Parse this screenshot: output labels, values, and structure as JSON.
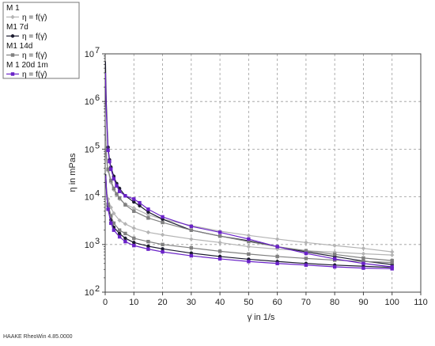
{
  "footer": "HAAKE RheoWin 4.85.0000",
  "colors": {
    "m1": "#b4b4b4",
    "m1_7d": "#1a1a2e",
    "m1_14d": "#808080",
    "m1_20d1m": "#6a22c8",
    "grid": "#9a9a9a"
  },
  "chart_data": {
    "type": "line",
    "xlabel": "γ̇ in 1/s",
    "ylabel": "η in mPas",
    "xlim": [
      0,
      110
    ],
    "ylim": [
      100,
      10000000
    ],
    "yscale": "log",
    "grid": true,
    "legend": "top-left",
    "x_ticks": [
      "0",
      "10",
      "20",
      "30",
      "40",
      "50",
      "60",
      "70",
      "80",
      "90",
      "100",
      "110"
    ],
    "y_ticks": [
      {
        "base": "10",
        "exp": "2",
        "value": 100
      },
      {
        "base": "10",
        "exp": "3",
        "value": 1000
      },
      {
        "base": "10",
        "exp": "4",
        "value": 10000
      },
      {
        "base": "10",
        "exp": "5",
        "value": 100000
      },
      {
        "base": "10",
        "exp": "6",
        "value": 1000000
      },
      {
        "base": "10",
        "exp": "7",
        "value": 10000000
      }
    ],
    "series": [
      {
        "name": "M 1",
        "entry": "η = f(γ̇)",
        "color": "#b4b4b4",
        "marker": "diamond",
        "up": [
          [
            0.1,
            150000
          ],
          [
            0.3,
            80000
          ],
          [
            0.6,
            50000
          ],
          [
            1,
            35000
          ],
          [
            2,
            20000
          ],
          [
            3,
            14000
          ],
          [
            4,
            11000
          ],
          [
            5,
            9000
          ],
          [
            7,
            7000
          ],
          [
            10,
            5800
          ],
          [
            15,
            4200
          ],
          [
            20,
            3400
          ],
          [
            30,
            2500
          ],
          [
            40,
            1900
          ],
          [
            50,
            1550
          ],
          [
            60,
            1300
          ],
          [
            70,
            1100
          ],
          [
            80,
            950
          ],
          [
            90,
            830
          ],
          [
            100,
            700
          ]
        ],
        "down": [
          [
            100,
            600
          ],
          [
            90,
            640
          ],
          [
            80,
            690
          ],
          [
            70,
            740
          ],
          [
            60,
            800
          ],
          [
            50,
            900
          ],
          [
            40,
            1100
          ],
          [
            30,
            1300
          ],
          [
            20,
            1600
          ],
          [
            15,
            1800
          ],
          [
            10,
            2200
          ],
          [
            7,
            2700
          ],
          [
            5,
            3200
          ],
          [
            3,
            4500
          ],
          [
            2,
            6000
          ],
          [
            1,
            9000
          ],
          [
            0.5,
            14000
          ],
          [
            0.2,
            25000
          ]
        ]
      },
      {
        "name": "M1 7d",
        "entry": "η = f(γ̇)",
        "color": "#1a1a2e",
        "marker": "circle",
        "up": [
          [
            0.1,
            7000000
          ],
          [
            0.2,
            3000000
          ],
          [
            0.4,
            900000
          ],
          [
            0.7,
            280000
          ],
          [
            1,
            110000
          ],
          [
            1.5,
            60000
          ],
          [
            2,
            42000
          ],
          [
            3,
            27000
          ],
          [
            4,
            19000
          ],
          [
            5,
            15000
          ],
          [
            7,
            10500
          ],
          [
            10,
            7800
          ],
          [
            12,
            6500
          ],
          [
            15,
            4800
          ],
          [
            20,
            3400
          ],
          [
            30,
            2000
          ],
          [
            40,
            1500
          ],
          [
            50,
            1200
          ],
          [
            60,
            900
          ],
          [
            70,
            700
          ],
          [
            80,
            560
          ],
          [
            90,
            450
          ],
          [
            100,
            380
          ]
        ],
        "down": [
          [
            100,
            330
          ],
          [
            90,
            350
          ],
          [
            80,
            370
          ],
          [
            70,
            400
          ],
          [
            60,
            440
          ],
          [
            50,
            490
          ],
          [
            40,
            560
          ],
          [
            30,
            660
          ],
          [
            20,
            810
          ],
          [
            15,
            920
          ],
          [
            10,
            1100
          ],
          [
            7,
            1350
          ],
          [
            5,
            1700
          ],
          [
            3,
            2300
          ],
          [
            2,
            3300
          ],
          [
            1,
            6500
          ],
          [
            0.5,
            12000
          ],
          [
            0.2,
            30000
          ]
        ]
      },
      {
        "name": "M1 14d",
        "entry": "η = f(γ̇)",
        "color": "#808080",
        "marker": "square",
        "up": [
          [
            0.1,
            300000
          ],
          [
            0.3,
            100000
          ],
          [
            0.6,
            55000
          ],
          [
            1,
            38000
          ],
          [
            2,
            22000
          ],
          [
            3,
            15000
          ],
          [
            4,
            11500
          ],
          [
            5,
            9500
          ],
          [
            7,
            6800
          ],
          [
            10,
            5000
          ],
          [
            15,
            3600
          ],
          [
            20,
            2900
          ],
          [
            30,
            2000
          ],
          [
            40,
            1500
          ],
          [
            50,
            1150
          ],
          [
            60,
            900
          ],
          [
            70,
            740
          ],
          [
            80,
            620
          ],
          [
            90,
            520
          ],
          [
            100,
            460
          ]
        ],
        "down": [
          [
            100,
            420
          ],
          [
            90,
            440
          ],
          [
            80,
            470
          ],
          [
            70,
            510
          ],
          [
            60,
            560
          ],
          [
            50,
            630
          ],
          [
            40,
            720
          ],
          [
            30,
            850
          ],
          [
            20,
            1000
          ],
          [
            15,
            1150
          ],
          [
            10,
            1350
          ],
          [
            7,
            1700
          ],
          [
            5,
            2000
          ],
          [
            3,
            2800
          ],
          [
            2,
            4000
          ],
          [
            1,
            7000
          ],
          [
            0.5,
            12000
          ],
          [
            0.2,
            22000
          ]
        ]
      },
      {
        "name": "M 1 20d 1m",
        "entry": "η = f(γ̇)",
        "color": "#6a22c8",
        "marker": "square",
        "up": [
          [
            0.1,
            4000000
          ],
          [
            0.2,
            1800000
          ],
          [
            0.4,
            600000
          ],
          [
            0.7,
            220000
          ],
          [
            1,
            95000
          ],
          [
            1.5,
            55000
          ],
          [
            2,
            38000
          ],
          [
            3,
            24000
          ],
          [
            4,
            17000
          ],
          [
            5,
            13000
          ],
          [
            7,
            10500
          ],
          [
            10,
            9000
          ],
          [
            12,
            7500
          ],
          [
            15,
            5500
          ],
          [
            20,
            3800
          ],
          [
            30,
            2400
          ],
          [
            40,
            1800
          ],
          [
            50,
            1300
          ],
          [
            60,
            900
          ],
          [
            70,
            650
          ],
          [
            80,
            500
          ],
          [
            90,
            400
          ],
          [
            100,
            340
          ]
        ],
        "down": [
          [
            100,
            310
          ],
          [
            90,
            320
          ],
          [
            80,
            340
          ],
          [
            70,
            370
          ],
          [
            60,
            400
          ],
          [
            50,
            440
          ],
          [
            40,
            500
          ],
          [
            30,
            580
          ],
          [
            20,
            700
          ],
          [
            15,
            800
          ],
          [
            10,
            950
          ],
          [
            7,
            1150
          ],
          [
            5,
            1450
          ],
          [
            3,
            2000
          ],
          [
            2,
            2800
          ],
          [
            1,
            5500
          ],
          [
            0.5,
            11000
          ],
          [
            0.2,
            28000
          ]
        ]
      }
    ]
  }
}
